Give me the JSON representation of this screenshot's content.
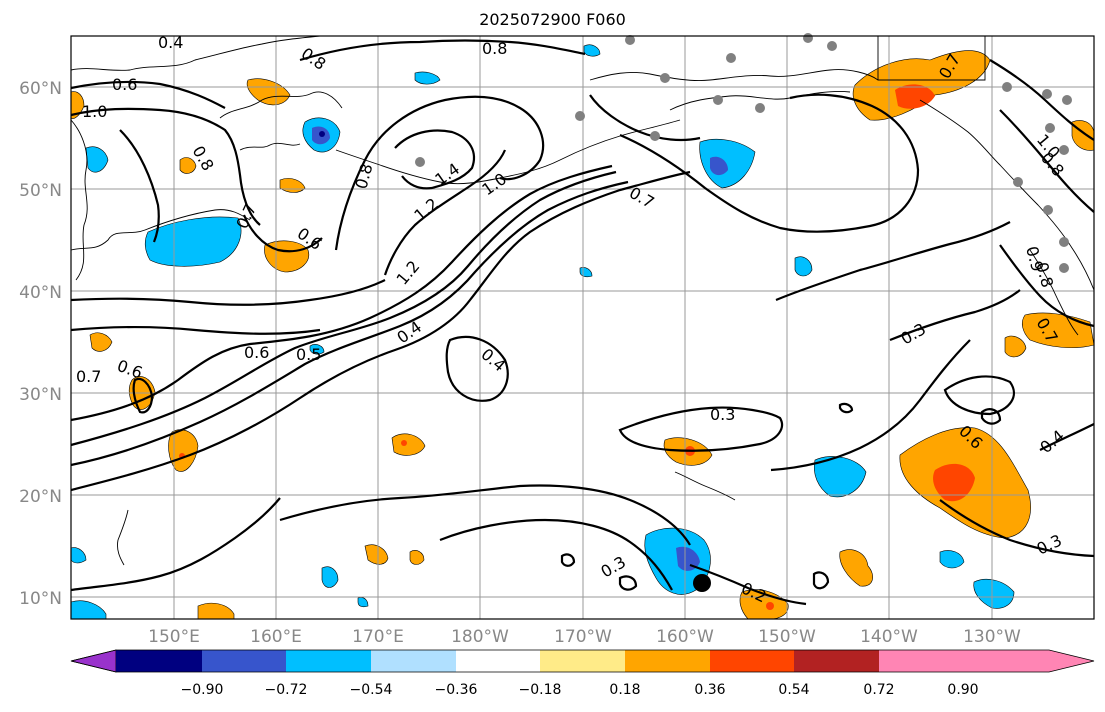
{
  "title": "2025072900 F060",
  "lat_labels": [
    "60°N",
    "50°N",
    "40°N",
    "30°N",
    "20°N",
    "10°N"
  ],
  "lon_labels": [
    "150°E",
    "160°E",
    "170°E",
    "180°W",
    "170°W",
    "160°W",
    "150°W",
    "140°W",
    "130°W"
  ],
  "colorbar": {
    "ticks": [
      "−0.90",
      "−0.72",
      "−0.54",
      "−0.36",
      "−0.18",
      "0.18",
      "0.36",
      "0.54",
      "0.72",
      "0.90"
    ],
    "colors": [
      "#9932CC",
      "#000080",
      "#3755CC",
      "#00BFFF",
      "#B0E0FF",
      "#FFFFFF",
      "#FFEB88",
      "#FFA500",
      "#FF4500",
      "#B22222",
      "#FF85B4"
    ]
  },
  "contour_labels": [
    "0.4",
    "0.5",
    "0.8",
    "0.6",
    "1.0",
    "0.8",
    "0.8",
    "1.4",
    "1.2",
    "1.0",
    "0.7",
    "0.7",
    "0.6",
    "1.2",
    "0.4",
    "0.6",
    "0.5",
    "0.7",
    "0.6",
    "0.4",
    "0.3",
    "0.3",
    "0.6",
    "0.4",
    "0.3",
    "0.3",
    "0.2",
    "0.7",
    "1.0",
    "0.8",
    "0.9",
    "0.8",
    "0.7",
    "0.3"
  ]
}
